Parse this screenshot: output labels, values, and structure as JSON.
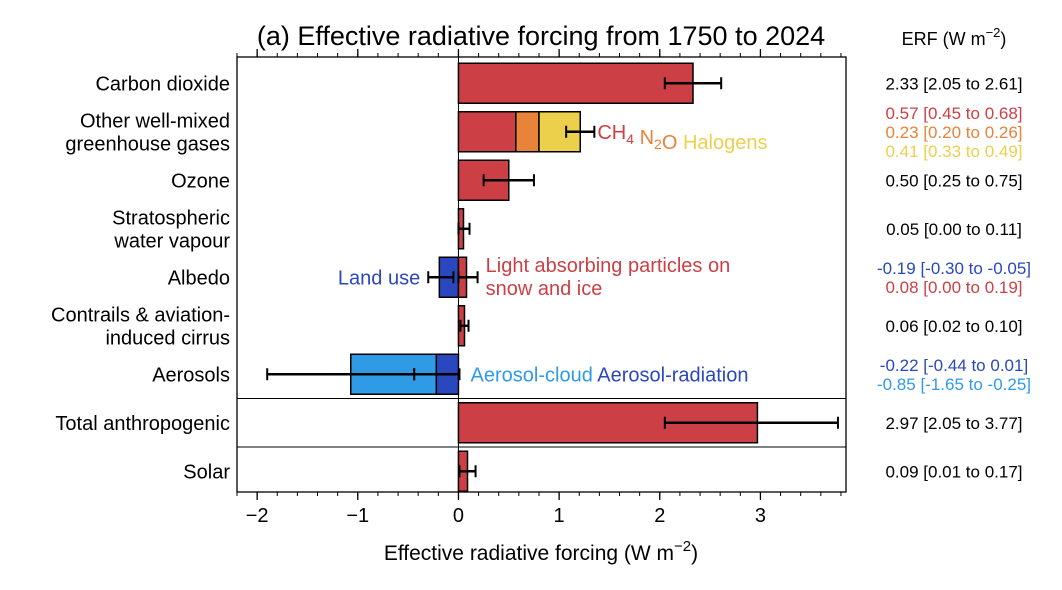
{
  "chart_data": {
    "type": "bar",
    "orientation": "horizontal",
    "stacked": true,
    "title": "(a) Effective radiative forcing from 1750 to 2024",
    "xlabel": "Effective radiative forcing (W m",
    "xlabel_sup": "−2",
    "xlabel_end": ")",
    "xlim": [
      -2.2,
      3.85
    ],
    "xticks": [
      {
        "v": -2,
        "label": "−2"
      },
      {
        "v": -1,
        "label": "−1"
      },
      {
        "v": 0,
        "label": "0"
      },
      {
        "v": 1,
        "label": "1"
      },
      {
        "v": 2,
        "label": "2"
      },
      {
        "v": 3,
        "label": "3"
      }
    ],
    "minor_tick_step": 0.2,
    "erf_header": "ERF (W m",
    "erf_header_sup": "−2",
    "erf_header_end": ")",
    "colors": {
      "red": "#cc3f45",
      "orange": "#e8833a",
      "yellow": "#ecd04c",
      "blue": "#2b47be",
      "lightblue": "#2f9be6"
    },
    "categories": [
      {
        "label": [
          "Carbon dioxide"
        ],
        "segments": [
          {
            "start": 0,
            "end": 2.33,
            "color": "red"
          }
        ],
        "errorbars": [
          {
            "center": 2.33,
            "low": 2.05,
            "high": 2.61
          }
        ],
        "erf": [
          {
            "text": "2.33 [2.05 to 2.61]",
            "color": "#000000"
          }
        ]
      },
      {
        "label": [
          "Other well-mixed",
          "greenhouse gases"
        ],
        "segments": [
          {
            "start": 0,
            "end": 0.57,
            "color": "red"
          },
          {
            "start": 0.57,
            "end": 0.8,
            "color": "orange"
          },
          {
            "start": 0.8,
            "end": 1.21,
            "color": "yellow"
          }
        ],
        "errorbars": [
          {
            "center": 1.21,
            "low": 1.07,
            "high": 1.35
          }
        ],
        "annotations": [
          {
            "parts": [
              {
                "t": "CH",
                "color": "red"
              },
              {
                "t": "4",
                "color": "red",
                "sub": true
              },
              {
                "t": " N",
                "color": "orange"
              },
              {
                "t": "2",
                "color": "orange",
                "sub": true
              },
              {
                "t": "O",
                "color": "orange"
              },
              {
                "t": " Halogens",
                "color": "yellow"
              }
            ],
            "x": 1.38,
            "align": "start"
          }
        ],
        "erf": [
          {
            "text": "0.57 [0.45 to 0.68]",
            "color": "#cc3f45"
          },
          {
            "text": "0.23 [0.20 to 0.26]",
            "color": "#e8833a"
          },
          {
            "text": "0.41 [0.33 to 0.49]",
            "color": "#ecd04c"
          }
        ]
      },
      {
        "label": [
          "Ozone"
        ],
        "segments": [
          {
            "start": 0,
            "end": 0.5,
            "color": "red"
          }
        ],
        "errorbars": [
          {
            "center": 0.5,
            "low": 0.25,
            "high": 0.75
          }
        ],
        "erf": [
          {
            "text": "0.50 [0.25 to 0.75]",
            "color": "#000000"
          }
        ]
      },
      {
        "label": [
          "Stratospheric",
          "water vapour"
        ],
        "segments": [
          {
            "start": 0,
            "end": 0.05,
            "color": "red"
          }
        ],
        "errorbars": [
          {
            "center": 0.05,
            "low": 0.0,
            "high": 0.11
          }
        ],
        "erf": [
          {
            "text": "0.05 [0.00 to 0.11]",
            "color": "#000000"
          }
        ]
      },
      {
        "label": [
          "Albedo"
        ],
        "segments": [
          {
            "start": -0.19,
            "end": 0,
            "color": "blue"
          },
          {
            "start": 0,
            "end": 0.08,
            "color": "red"
          }
        ],
        "errorbars": [
          {
            "center": -0.19,
            "low": -0.3,
            "high": -0.05
          },
          {
            "center": 0.08,
            "low": 0.0,
            "high": 0.19
          }
        ],
        "annotations": [
          {
            "parts": [
              {
                "t": "Land use",
                "color": "blue"
              }
            ],
            "x": -0.38,
            "align": "end"
          },
          {
            "lines": [
              "Light absorbing particles on",
              "snow and ice"
            ],
            "color": "red",
            "x": 0.27,
            "align": "start"
          }
        ],
        "erf": [
          {
            "text": "-0.19 [-0.30 to -0.05]",
            "color": "#2b47be"
          },
          {
            "text": "0.08 [0.00 to 0.19]",
            "color": "#cc3f45"
          }
        ]
      },
      {
        "label": [
          "Contrails & aviation-",
          "induced cirrus"
        ],
        "segments": [
          {
            "start": 0,
            "end": 0.06,
            "color": "red"
          }
        ],
        "errorbars": [
          {
            "center": 0.06,
            "low": 0.02,
            "high": 0.1
          }
        ],
        "erf": [
          {
            "text": "0.06 [0.02 to 0.10]",
            "color": "#000000"
          }
        ]
      },
      {
        "label": [
          "Aerosols"
        ],
        "segments": [
          {
            "start": -0.22,
            "end": 0,
            "color": "blue"
          },
          {
            "start": -1.07,
            "end": -0.22,
            "color": "lightblue"
          }
        ],
        "errorbars": [
          {
            "center": -0.22,
            "low": -0.44,
            "high": 0.01
          },
          {
            "center": -1.07,
            "low": -1.9,
            "high": -0.44
          }
        ],
        "annotations": [
          {
            "parts": [
              {
                "t": "Aerosol-cloud",
                "color": "lightblue"
              },
              {
                "t": " Aerosol-radiation",
                "color": "blue"
              }
            ],
            "x": 0.12,
            "align": "start"
          }
        ],
        "erf": [
          {
            "text": "-0.22 [-0.44 to 0.01]",
            "color": "#2b47be"
          },
          {
            "text": "-0.85 [-1.65 to -0.25]",
            "color": "#2f9be6"
          }
        ]
      },
      {
        "label": [
          "Total anthropogenic"
        ],
        "segments": [
          {
            "start": 0,
            "end": 2.97,
            "color": "red"
          }
        ],
        "errorbars": [
          {
            "center": 2.97,
            "low": 2.05,
            "high": 3.77
          }
        ],
        "erf": [
          {
            "text": "2.97 [2.05 to 3.77]",
            "color": "#000000"
          }
        ]
      },
      {
        "label": [
          "Solar"
        ],
        "segments": [
          {
            "start": 0,
            "end": 0.09,
            "color": "red"
          }
        ],
        "errorbars": [
          {
            "center": 0.09,
            "low": 0.01,
            "high": 0.17
          }
        ],
        "erf": [
          {
            "text": "0.09 [0.01 to 0.17]",
            "color": "#000000"
          }
        ]
      }
    ]
  }
}
